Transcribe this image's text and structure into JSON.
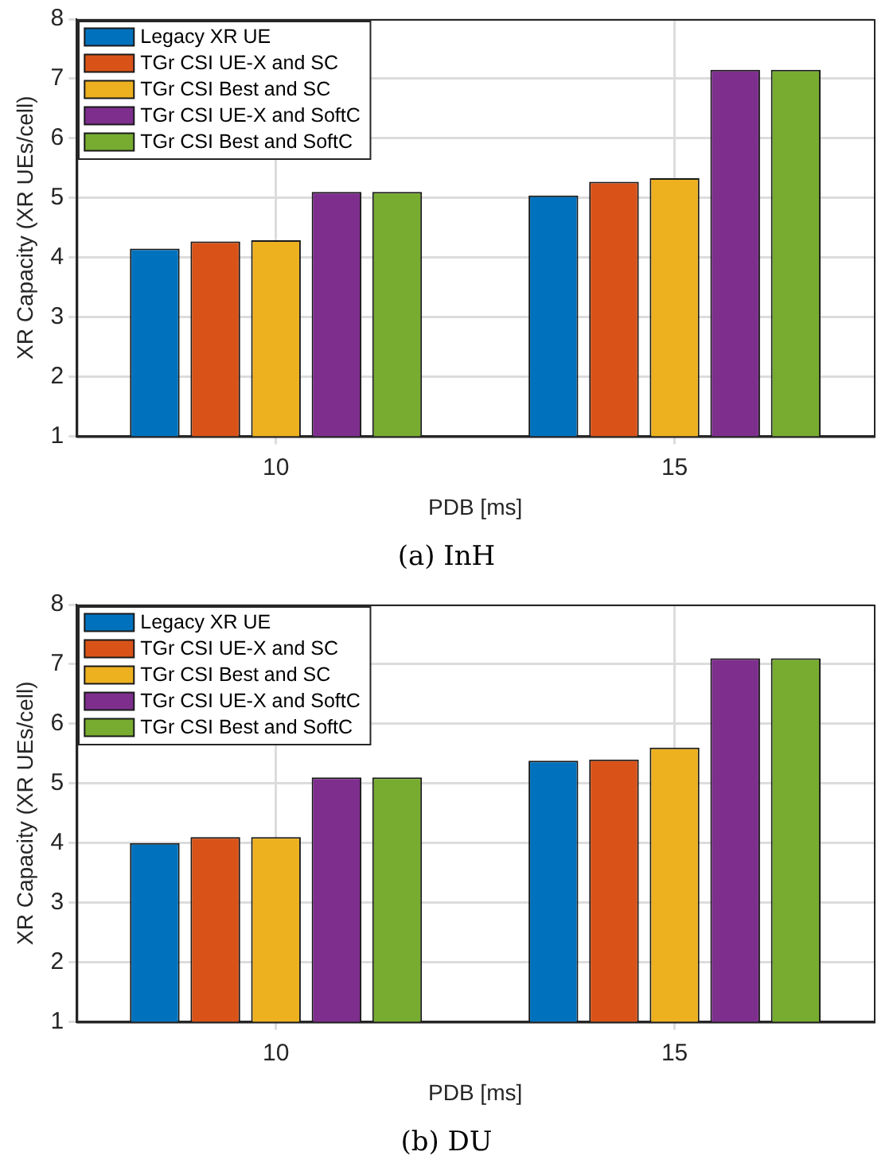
{
  "chart_data": [
    {
      "type": "bar",
      "categories": [
        "10",
        "15"
      ],
      "xlabel": "PDB [ms]",
      "ylabel": "XR Capacity (XR UEs/cell)",
      "ylim": [
        1,
        8
      ],
      "yticks": [
        1,
        2,
        3,
        4,
        5,
        6,
        7,
        8
      ],
      "grid": true,
      "legend": "top left",
      "annotations": [
        "(a) InH"
      ],
      "series": [
        {
          "name": "Legacy XR UE",
          "color": "#0072bd",
          "values": [
            4.15,
            5.04
          ]
        },
        {
          "name": "TGr CSI UE-X and SC",
          "color": "#d95319",
          "values": [
            4.27,
            5.27
          ]
        },
        {
          "name": "TGr CSI Best and SC",
          "color": "#edb120",
          "values": [
            4.29,
            5.33
          ]
        },
        {
          "name": "TGr CSI UE-X and SoftC",
          "color": "#7e2f8e",
          "values": [
            5.1,
            7.15
          ]
        },
        {
          "name": "TGr CSI Best and SoftC",
          "color": "#77ac30",
          "values": [
            5.1,
            7.15
          ]
        }
      ]
    },
    {
      "type": "bar",
      "categories": [
        "10",
        "15"
      ],
      "xlabel": "PDB [ms]",
      "ylabel": "XR Capacity (XR UEs/cell)",
      "ylim": [
        1,
        8
      ],
      "yticks": [
        1,
        2,
        3,
        4,
        5,
        6,
        7,
        8
      ],
      "grid": true,
      "legend": "top left",
      "annotations": [
        "(b) DU"
      ],
      "series": [
        {
          "name": "Legacy XR UE",
          "color": "#0072bd",
          "values": [
            4.0,
            5.38
          ]
        },
        {
          "name": "TGr CSI UE-X and SC",
          "color": "#d95319",
          "values": [
            4.1,
            5.4
          ]
        },
        {
          "name": "TGr CSI Best and SC",
          "color": "#edb120",
          "values": [
            4.1,
            5.6
          ]
        },
        {
          "name": "TGr CSI UE-X and SoftC",
          "color": "#7e2f8e",
          "values": [
            5.1,
            7.1
          ]
        },
        {
          "name": "TGr CSI Best and SoftC",
          "color": "#77ac30",
          "values": [
            5.1,
            7.1
          ]
        }
      ]
    }
  ]
}
